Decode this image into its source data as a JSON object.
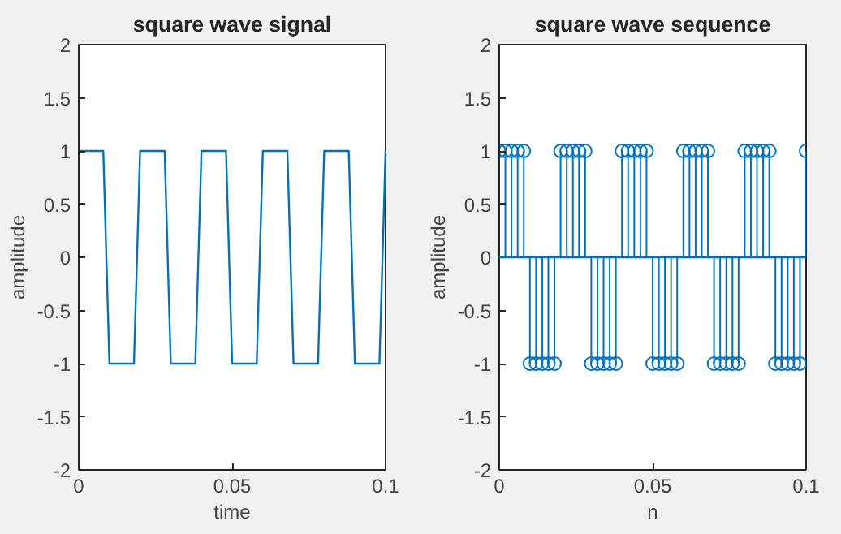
{
  "chart_data": [
    {
      "type": "line",
      "title": "square wave signal",
      "xlabel": "time",
      "ylabel": "amplitude",
      "x": [
        0,
        0.002,
        0.004,
        0.006,
        0.008,
        0.01,
        0.012,
        0.014,
        0.016,
        0.018,
        0.02,
        0.022,
        0.024,
        0.026,
        0.028,
        0.03,
        0.032,
        0.034,
        0.036,
        0.038,
        0.04,
        0.042,
        0.044,
        0.046,
        0.048,
        0.05,
        0.052,
        0.054,
        0.056,
        0.058,
        0.06,
        0.062,
        0.064,
        0.066,
        0.068,
        0.07,
        0.072,
        0.074,
        0.076,
        0.078,
        0.08,
        0.082,
        0.084,
        0.086,
        0.088,
        0.09,
        0.092,
        0.094,
        0.096,
        0.098,
        0.1
      ],
      "values": [
        1,
        1,
        1,
        1,
        1,
        -1,
        -1,
        -1,
        -1,
        -1,
        1,
        1,
        1,
        1,
        1,
        -1,
        -1,
        -1,
        -1,
        -1,
        1,
        1,
        1,
        1,
        1,
        -1,
        -1,
        -1,
        -1,
        -1,
        1,
        1,
        1,
        1,
        1,
        -1,
        -1,
        -1,
        -1,
        -1,
        1,
        1,
        1,
        1,
        1,
        -1,
        -1,
        -1,
        -1,
        -1,
        1
      ],
      "color": "#0072bd",
      "xlim": [
        0,
        0.1
      ],
      "ylim": [
        -2,
        2
      ],
      "xticks": [
        0,
        0.05,
        0.1
      ],
      "yticks": [
        -2,
        -1.5,
        -1,
        -0.5,
        0,
        0.5,
        1,
        1.5,
        2
      ],
      "grid": false,
      "marker": "none",
      "line_style": "solid"
    },
    {
      "type": "lollipop",
      "title": "square wave sequence",
      "xlabel": "n",
      "ylabel": "amplitude",
      "x": [
        0,
        0.002,
        0.004,
        0.006,
        0.008,
        0.01,
        0.012,
        0.014,
        0.016,
        0.018,
        0.02,
        0.022,
        0.024,
        0.026,
        0.028,
        0.03,
        0.032,
        0.034,
        0.036,
        0.038,
        0.04,
        0.042,
        0.044,
        0.046,
        0.048,
        0.05,
        0.052,
        0.054,
        0.056,
        0.058,
        0.06,
        0.062,
        0.064,
        0.066,
        0.068,
        0.07,
        0.072,
        0.074,
        0.076,
        0.078,
        0.08,
        0.082,
        0.084,
        0.086,
        0.088,
        0.09,
        0.092,
        0.094,
        0.096,
        0.098,
        0.1
      ],
      "values": [
        1,
        1,
        1,
        1,
        1,
        -1,
        -1,
        -1,
        -1,
        -1,
        1,
        1,
        1,
        1,
        1,
        -1,
        -1,
        -1,
        -1,
        -1,
        1,
        1,
        1,
        1,
        1,
        -1,
        -1,
        -1,
        -1,
        -1,
        1,
        1,
        1,
        1,
        1,
        -1,
        -1,
        -1,
        -1,
        -1,
        1,
        1,
        1,
        1,
        1,
        -1,
        -1,
        -1,
        -1,
        -1,
        1
      ],
      "color": "#0072bd",
      "xlim": [
        0,
        0.1
      ],
      "ylim": [
        -2,
        2
      ],
      "xticks": [
        0,
        0.05,
        0.1
      ],
      "yticks": [
        -2,
        -1.5,
        -1,
        -0.5,
        0,
        0.5,
        1,
        1.5,
        2
      ],
      "grid": false,
      "marker": "circle",
      "ref_lines": [
        {
          "axis": "y",
          "value": 0
        }
      ]
    }
  ]
}
